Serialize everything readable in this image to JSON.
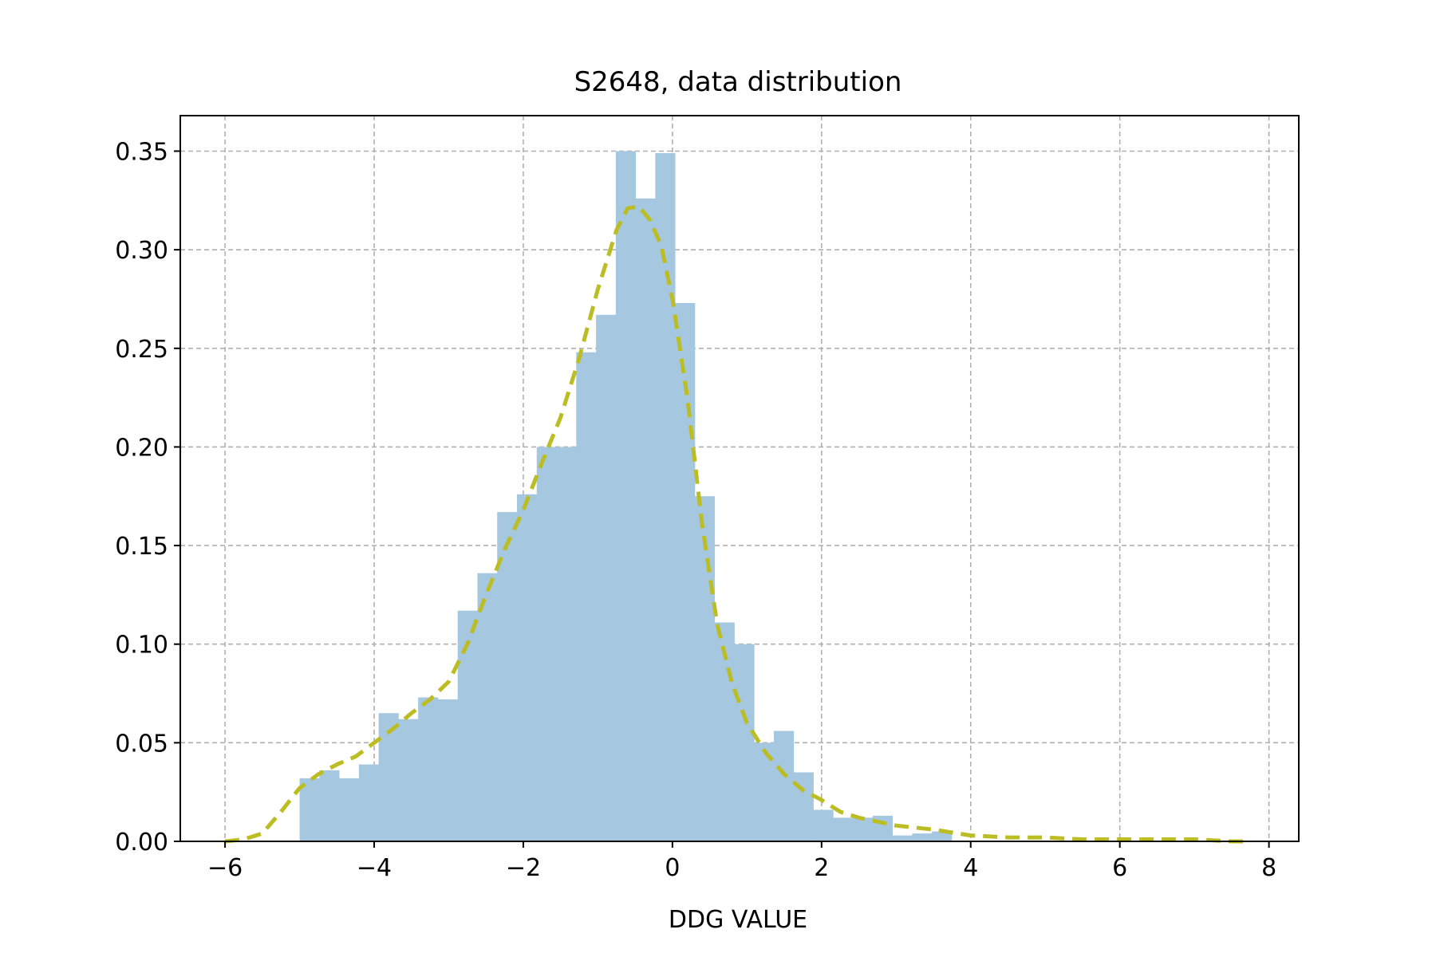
{
  "chart_data": {
    "type": "bar",
    "title": "S2648, data distribution",
    "xlabel": "DDG VALUE",
    "ylabel": "",
    "xlim": [
      -6.6,
      8.4
    ],
    "ylim": [
      0.0,
      0.368
    ],
    "x_ticks": [
      -6,
      -4,
      -2,
      0,
      2,
      4,
      6,
      8
    ],
    "x_tick_labels": [
      "−6",
      "−4",
      "−2",
      "0",
      "2",
      "4",
      "6",
      "8"
    ],
    "y_ticks": [
      0.0,
      0.05,
      0.1,
      0.15,
      0.2,
      0.25,
      0.3,
      0.35
    ],
    "y_tick_labels": [
      "0.00",
      "0.05",
      "0.10",
      "0.15",
      "0.20",
      "0.25",
      "0.30",
      "0.35"
    ],
    "grid": true,
    "legend": "none",
    "histogram": {
      "bin_edges": [
        -5.0,
        -4.735,
        -4.47,
        -4.205,
        -3.94,
        -3.675,
        -3.41,
        -3.145,
        -2.88,
        -2.615,
        -2.35,
        -2.085,
        -1.82,
        -1.555,
        -1.29,
        -1.025,
        -0.76,
        -0.495,
        -0.23,
        0.035,
        0.3,
        0.565,
        0.83,
        1.095,
        1.36,
        1.625,
        1.89,
        2.155,
        2.42,
        2.685,
        2.95,
        3.215,
        3.48,
        3.745
      ],
      "values": [
        0.032,
        0.036,
        0.032,
        0.039,
        0.065,
        0.062,
        0.073,
        0.072,
        0.117,
        0.136,
        0.167,
        0.176,
        0.2,
        0.2,
        0.248,
        0.267,
        0.35,
        0.326,
        0.349,
        0.273,
        0.175,
        0.111,
        0.1,
        0.05,
        0.056,
        0.035,
        0.016,
        0.012,
        0.012,
        0.013,
        0.003,
        0.004,
        0.005
      ],
      "color": "#a5c8e0"
    },
    "series": [
      {
        "kind": "density-line",
        "x": [
          -6.0,
          -5.75,
          -5.5,
          -5.25,
          -5.0,
          -4.75,
          -4.5,
          -4.25,
          -4.0,
          -3.75,
          -3.5,
          -3.25,
          -3.0,
          -2.75,
          -2.5,
          -2.25,
          -2.0,
          -1.75,
          -1.5,
          -1.25,
          -1.0,
          -0.75,
          -0.6,
          -0.45,
          -0.3,
          -0.15,
          0.0,
          0.2,
          0.4,
          0.6,
          0.8,
          1.0,
          1.25,
          1.5,
          1.75,
          2.0,
          2.25,
          2.5,
          2.75,
          3.0,
          3.5,
          4.0,
          4.5,
          5.0,
          5.5,
          6.0,
          6.5,
          7.0,
          7.5,
          7.75
        ],
        "y": [
          0.0,
          0.001,
          0.004,
          0.015,
          0.027,
          0.034,
          0.039,
          0.043,
          0.05,
          0.057,
          0.065,
          0.072,
          0.081,
          0.1,
          0.125,
          0.148,
          0.168,
          0.192,
          0.215,
          0.245,
          0.28,
          0.31,
          0.321,
          0.322,
          0.315,
          0.302,
          0.275,
          0.225,
          0.16,
          0.11,
          0.08,
          0.06,
          0.045,
          0.034,
          0.026,
          0.021,
          0.015,
          0.012,
          0.01,
          0.008,
          0.006,
          0.003,
          0.002,
          0.002,
          0.001,
          0.001,
          0.001,
          0.001,
          0.0,
          0.0
        ],
        "color": "#bcbd22",
        "style": "dashed"
      }
    ]
  }
}
